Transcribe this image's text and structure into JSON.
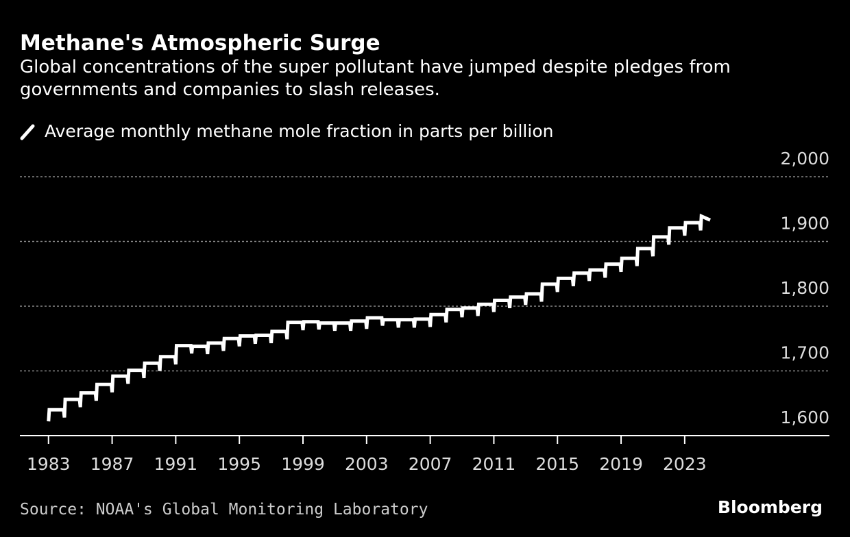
{
  "chart_data": {
    "type": "line",
    "title": "Methane's Atmospheric Surge",
    "subtitle": "Global concentrations of the super pollutant have jumped despite pledges from governments and companies to slash releases.",
    "source": "Source: NOAA's Global Monitoring Laboratory",
    "brand": "Bloomberg",
    "x": [
      1983.0,
      1983.05,
      1983.95,
      1984.0,
      1984.05,
      1984.95,
      1985.0,
      1985.05,
      1985.95,
      1986.0,
      1986.05,
      1986.95,
      1987.0,
      1987.05,
      1987.95,
      1988.0,
      1988.05,
      1988.95,
      1989.0,
      1989.05,
      1989.95,
      1990.0,
      1990.05,
      1990.95,
      1991.0,
      1991.05,
      1991.95,
      1992.0,
      1992.05,
      1992.95,
      1993.0,
      1993.05,
      1993.95,
      1994.0,
      1994.05,
      1994.95,
      1995.0,
      1995.05,
      1995.95,
      1996.0,
      1996.05,
      1996.95,
      1997.0,
      1997.05,
      1997.95,
      1998.0,
      1998.05,
      1998.95,
      1999.0,
      1999.05,
      1999.95,
      2000.0,
      2000.05,
      2000.95,
      2001.0,
      2001.05,
      2001.95,
      2002.0,
      2002.05,
      2002.95,
      2003.0,
      2003.05,
      2003.95,
      2004.0,
      2004.05,
      2004.95,
      2005.0,
      2005.05,
      2005.95,
      2006.0,
      2006.05,
      2006.95,
      2007.0,
      2007.05,
      2007.95,
      2008.0,
      2008.05,
      2008.95,
      2009.0,
      2009.05,
      2009.95,
      2010.0,
      2010.05,
      2010.95,
      2011.0,
      2011.05,
      2011.95,
      2012.0,
      2012.05,
      2012.95,
      2013.0,
      2013.05,
      2013.95,
      2014.0,
      2014.05,
      2014.95,
      2015.0,
      2015.05,
      2015.95,
      2016.0,
      2016.05,
      2016.95,
      2017.0,
      2017.05,
      2017.95,
      2018.0,
      2018.05,
      2018.95,
      2019.0,
      2019.05,
      2019.95,
      2020.0,
      2020.05,
      2020.95,
      2021.0,
      2021.05,
      2021.95,
      2022.0,
      2022.05,
      2022.95,
      2023.0,
      2023.05,
      2023.95,
      2024.0,
      2024.05,
      2024.6
    ],
    "series": [
      {
        "name": "Average monthly methane mole fraction in parts per billion",
        "color": "#ffffff",
        "values": [
          1622,
          1640,
          1640,
          1628,
          1656,
          1656,
          1644,
          1666,
          1666,
          1654,
          1679,
          1679,
          1667,
          1692,
          1692,
          1680,
          1701,
          1701,
          1689,
          1712,
          1712,
          1700,
          1722,
          1722,
          1710,
          1739,
          1739,
          1727,
          1738,
          1738,
          1726,
          1743,
          1743,
          1731,
          1750,
          1750,
          1738,
          1754,
          1754,
          1742,
          1755,
          1755,
          1743,
          1761,
          1761,
          1749,
          1775,
          1775,
          1763,
          1776,
          1776,
          1764,
          1774,
          1774,
          1762,
          1774,
          1774,
          1762,
          1777,
          1777,
          1765,
          1782,
          1782,
          1770,
          1779,
          1779,
          1767,
          1779,
          1779,
          1767,
          1780,
          1780,
          1768,
          1787,
          1787,
          1775,
          1795,
          1795,
          1783,
          1797,
          1797,
          1785,
          1803,
          1803,
          1791,
          1809,
          1809,
          1797,
          1814,
          1814,
          1802,
          1819,
          1819,
          1807,
          1834,
          1834,
          1822,
          1843,
          1843,
          1831,
          1851,
          1851,
          1839,
          1856,
          1856,
          1844,
          1865,
          1865,
          1853,
          1874,
          1874,
          1862,
          1889,
          1889,
          1877,
          1907,
          1907,
          1895,
          1921,
          1921,
          1909,
          1929,
          1929,
          1917,
          1939,
          1933
        ]
      }
    ],
    "xlim": [
      1981.2,
      2032.1
    ],
    "xticks": [
      1983,
      1987,
      1991,
      1995,
      1999,
      2003,
      2007,
      2011,
      2015,
      2019,
      2023
    ],
    "ylim": [
      1600,
      2000
    ],
    "yticks": [
      {
        "value": 1600,
        "label": "1,600"
      },
      {
        "value": 1700,
        "label": "1,700"
      },
      {
        "value": 1800,
        "label": "1,800"
      },
      {
        "value": 1900,
        "label": "1,900"
      },
      {
        "value": 2000,
        "label": "2,000"
      }
    ],
    "grid": true
  }
}
